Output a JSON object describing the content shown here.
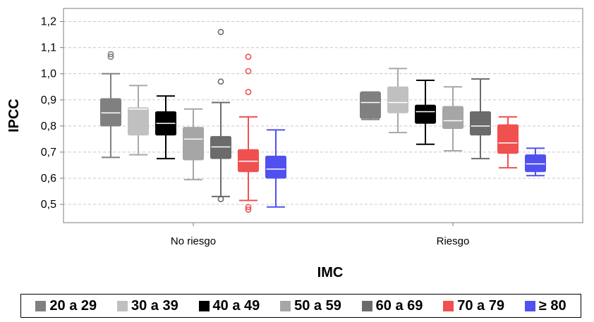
{
  "chart_data": {
    "type": "boxplot",
    "xlabel": "IMC",
    "ylabel": "IPCC",
    "ylim": [
      0.43,
      1.25
    ],
    "yticks": [
      "0,5",
      "0,6",
      "0,7",
      "0,8",
      "0,9",
      "1,0",
      "1,1",
      "1,2"
    ],
    "ytick_values": [
      0.5,
      0.6,
      0.7,
      0.8,
      0.9,
      1.0,
      1.1,
      1.2
    ],
    "grid": true,
    "legend_position": "bottom",
    "categories": [
      "No riesgo",
      "Riesgo"
    ],
    "series": [
      {
        "name": "20 a 29",
        "color": "#808080",
        "line_color": "#808080",
        "boxes": [
          {
            "whisker_low": 0.68,
            "q1": 0.8,
            "median": 0.85,
            "q3": 0.905,
            "whisker_high": 1.0,
            "outliers": [
              1.065,
              1.075
            ]
          },
          {
            "whisker_low": 0.825,
            "q1": 0.83,
            "median": 0.89,
            "q3": 0.93,
            "whisker_high": 0.93,
            "outliers": []
          }
        ]
      },
      {
        "name": "30 a 39",
        "color": "#c0c0c0",
        "line_color": "#a8a8a8",
        "boxes": [
          {
            "whisker_low": 0.69,
            "q1": 0.765,
            "median": 0.865,
            "q3": 0.87,
            "whisker_high": 0.955,
            "outliers": []
          },
          {
            "whisker_low": 0.775,
            "q1": 0.85,
            "median": 0.89,
            "q3": 0.95,
            "whisker_high": 1.02,
            "outliers": []
          }
        ]
      },
      {
        "name": "40 a 49",
        "color": "#000000",
        "line_color": "#000000",
        "boxes": [
          {
            "whisker_low": 0.675,
            "q1": 0.765,
            "median": 0.81,
            "q3": 0.855,
            "whisker_high": 0.915,
            "outliers": []
          },
          {
            "whisker_low": 0.73,
            "q1": 0.81,
            "median": 0.855,
            "q3": 0.88,
            "whisker_high": 0.975,
            "outliers": []
          }
        ]
      },
      {
        "name": "50 a 59",
        "color": "#a6a6a6",
        "line_color": "#a6a6a6",
        "boxes": [
          {
            "whisker_low": 0.595,
            "q1": 0.67,
            "median": 0.75,
            "q3": 0.795,
            "whisker_high": 0.865,
            "outliers": []
          },
          {
            "whisker_low": 0.705,
            "q1": 0.79,
            "median": 0.82,
            "q3": 0.875,
            "whisker_high": 0.95,
            "outliers": []
          }
        ]
      },
      {
        "name": "60 a 69",
        "color": "#6b6b6b",
        "line_color": "#6b6b6b",
        "boxes": [
          {
            "whisker_low": 0.53,
            "q1": 0.675,
            "median": 0.72,
            "q3": 0.76,
            "whisker_high": 0.89,
            "outliers": [
              0.52,
              0.97,
              1.16
            ]
          },
          {
            "whisker_low": 0.675,
            "q1": 0.765,
            "median": 0.8,
            "q3": 0.855,
            "whisker_high": 0.98,
            "outliers": []
          }
        ]
      },
      {
        "name": "70 a 79",
        "color": "#f05050",
        "line_color": "#f05050",
        "boxes": [
          {
            "whisker_low": 0.515,
            "q1": 0.625,
            "median": 0.665,
            "q3": 0.71,
            "whisker_high": 0.835,
            "outliers": [
              0.48,
              0.49,
              0.93,
              1.01,
              1.065
            ]
          },
          {
            "whisker_low": 0.64,
            "q1": 0.695,
            "median": 0.735,
            "q3": 0.805,
            "whisker_high": 0.835,
            "outliers": []
          }
        ]
      },
      {
        "name": "≥ 80",
        "color": "#5050f0",
        "line_color": "#5050f0",
        "boxes": [
          {
            "whisker_low": 0.49,
            "q1": 0.6,
            "median": 0.635,
            "q3": 0.685,
            "whisker_high": 0.785,
            "outliers": []
          },
          {
            "whisker_low": 0.61,
            "q1": 0.625,
            "median": 0.655,
            "q3": 0.69,
            "whisker_high": 0.715,
            "outliers": []
          }
        ]
      }
    ]
  }
}
